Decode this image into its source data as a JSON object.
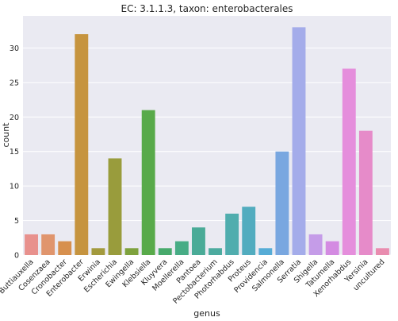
{
  "chart_data": {
    "type": "bar",
    "title": "EC: 3.1.1.3, taxon: enterobacterales",
    "xlabel": "genus",
    "ylabel": "count",
    "ylim": [
      0,
      34.65
    ],
    "yticks": [
      0,
      5,
      10,
      15,
      20,
      25,
      30
    ],
    "grid": true,
    "legend": "none",
    "background_color": "#eaeaf2",
    "categories": [
      "Buttiauxella",
      "Cosenzaea",
      "Cronobacter",
      "Enterobacter",
      "Erwinia",
      "Escherichia",
      "Ewingella",
      "Klebsiella",
      "Kluyvera",
      "Moellerella",
      "Pantoea",
      "Pectobacterium",
      "Photorhabdus",
      "Proteus",
      "Providencia",
      "Salmonella",
      "Serratia",
      "Shigella",
      "Tatumella",
      "Xenorhabdus",
      "Yersinia",
      "uncultured"
    ],
    "values": [
      3,
      3,
      2,
      32,
      1,
      14,
      1,
      21,
      1,
      2,
      4,
      1,
      6,
      7,
      1,
      15,
      33,
      3,
      2,
      27,
      18,
      1
    ],
    "colors": [
      "#e8918d",
      "#e0956d",
      "#d7904e",
      "#c6943f",
      "#a39a3d",
      "#999c3c",
      "#7ea23d",
      "#58aa4a",
      "#47aa6c",
      "#47ac85",
      "#4aab97",
      "#4cab9f",
      "#50adae",
      "#52acbf",
      "#56acd6",
      "#79a7e0",
      "#a4acea",
      "#c59ce8",
      "#d48be2",
      "#e58edc",
      "#e68bc9",
      "#e98caf"
    ]
  }
}
